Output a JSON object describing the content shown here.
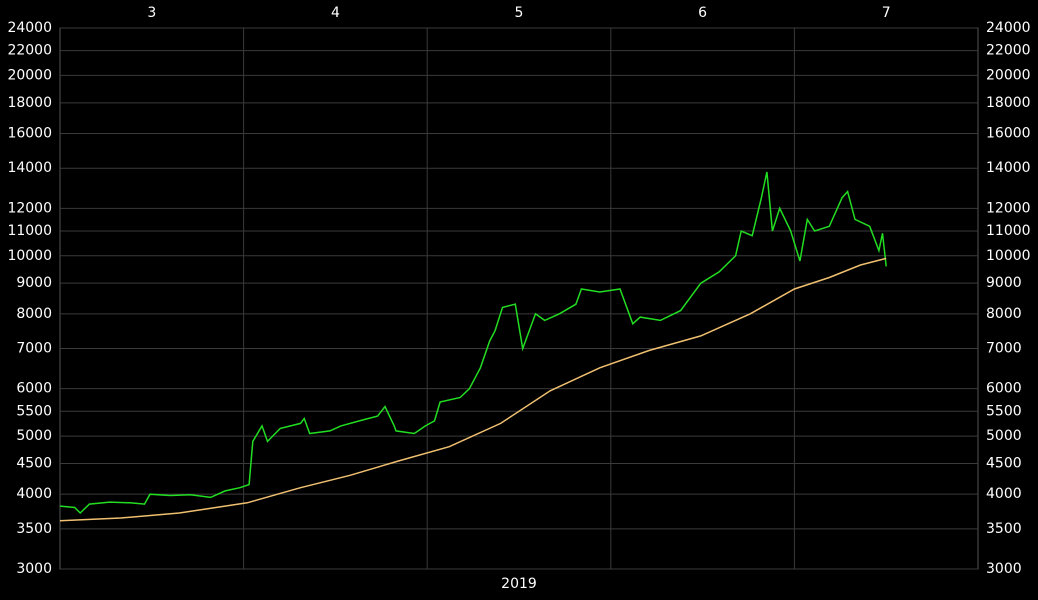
{
  "chart_data": {
    "type": "line",
    "xlabel": "2019",
    "xlim": [
      3,
      8
    ],
    "xticks": [
      {
        "value": 3.5,
        "label": "3"
      },
      {
        "value": 4.5,
        "label": "4"
      },
      {
        "value": 5.5,
        "label": "5"
      },
      {
        "value": 6.5,
        "label": "6"
      },
      {
        "value": 7.5,
        "label": "7"
      }
    ],
    "xgrid": [
      4,
      5,
      6,
      7
    ],
    "ylim": [
      3000,
      24000
    ],
    "log_scale": true,
    "grid": true,
    "yticks": [
      3000,
      3500,
      4000,
      4500,
      5000,
      5500,
      6000,
      7000,
      8000,
      9000,
      10000,
      11000,
      12000,
      14000,
      16000,
      18000,
      20000,
      22000,
      24000
    ],
    "series": [
      {
        "color": "#22dd22",
        "x": [
          3.0,
          3.08,
          3.11,
          3.16,
          3.27,
          3.38,
          3.46,
          3.49,
          3.6,
          3.71,
          3.82,
          3.9,
          3.98,
          4.03,
          4.05,
          4.1,
          4.13,
          4.2,
          4.31,
          4.33,
          4.36,
          4.47,
          4.53,
          4.63,
          4.73,
          4.77,
          4.82,
          4.83,
          4.93,
          4.99,
          5.04,
          5.07,
          5.18,
          5.23,
          5.29,
          5.34,
          5.37,
          5.41,
          5.48,
          5.52,
          5.59,
          5.64,
          5.72,
          5.81,
          5.84,
          5.94,
          6.05,
          6.12,
          6.16,
          6.27,
          6.38,
          6.49,
          6.59,
          6.68,
          6.71,
          6.77,
          6.82,
          6.85,
          6.88,
          6.92,
          6.98,
          7.03,
          7.07,
          7.11,
          7.19,
          7.26,
          7.29,
          7.33,
          7.41,
          7.46,
          7.48,
          7.5
        ],
        "values": [
          3820,
          3800,
          3720,
          3850,
          3880,
          3870,
          3850,
          4000,
          3980,
          3990,
          3950,
          4050,
          4100,
          4150,
          4900,
          5200,
          4900,
          5150,
          5250,
          5350,
          5050,
          5100,
          5200,
          5300,
          5400,
          5600,
          5200,
          5100,
          5050,
          5200,
          5300,
          5700,
          5800,
          6000,
          6500,
          7200,
          7500,
          8200,
          8300,
          7000,
          8000,
          7800,
          8000,
          8300,
          8800,
          8700,
          8800,
          7700,
          7900,
          7800,
          8100,
          9000,
          9400,
          10000,
          11000,
          10800,
          12500,
          13800,
          11000,
          12000,
          11000,
          9800,
          11500,
          11000,
          11200,
          12500,
          12800,
          11500,
          11200,
          10200,
          10900,
          9600
        ]
      },
      {
        "color": "#f0c070",
        "x": [
          3.0,
          3.33,
          3.65,
          4.02,
          4.31,
          4.58,
          4.85,
          5.12,
          5.4,
          5.67,
          5.94,
          6.21,
          6.49,
          6.76,
          7.0,
          7.19,
          7.36,
          7.5
        ],
        "values": [
          3610,
          3650,
          3720,
          3870,
          4100,
          4300,
          4550,
          4800,
          5250,
          5950,
          6500,
          6950,
          7350,
          8000,
          8800,
          9200,
          9650,
          9900
        ]
      }
    ]
  }
}
